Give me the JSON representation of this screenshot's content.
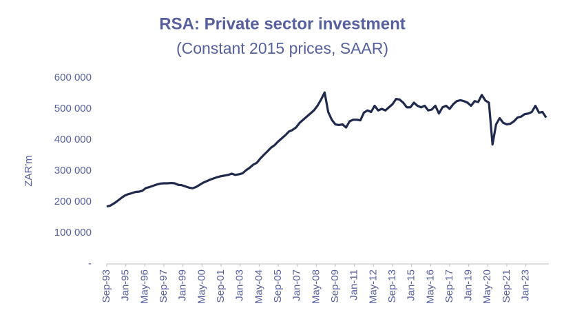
{
  "chart_data": {
    "type": "line",
    "title": "RSA: Private sector investment",
    "subtitle": "(Constant 2015 prices, SAAR)",
    "y_label": "ZAR'm",
    "x": [
      "Sep-93",
      "Dec-93",
      "Mar-94",
      "Jun-94",
      "Sep-94",
      "Dec-94",
      "Mar-95",
      "Jun-95",
      "Sep-95",
      "Dec-95",
      "Mar-96",
      "Jun-96",
      "Sep-96",
      "Dec-96",
      "Mar-97",
      "Jun-97",
      "Sep-97",
      "Dec-97",
      "Mar-98",
      "Jun-98",
      "Sep-98",
      "Dec-98",
      "Mar-99",
      "Jun-99",
      "Sep-99",
      "Dec-99",
      "Mar-00",
      "Jun-00",
      "Sep-00",
      "Dec-00",
      "Mar-01",
      "Jun-01",
      "Sep-01",
      "Dec-01",
      "Mar-02",
      "Jun-02",
      "Sep-02",
      "Dec-02",
      "Mar-03",
      "Jun-03",
      "Sep-03",
      "Dec-03",
      "Mar-04",
      "Jun-04",
      "Sep-04",
      "Dec-04",
      "Mar-05",
      "Jun-05",
      "Sep-05",
      "Dec-05",
      "Mar-06",
      "Jun-06",
      "Sep-06",
      "Dec-06",
      "Mar-07",
      "Jun-07",
      "Sep-07",
      "Dec-07",
      "Mar-08",
      "Jun-08",
      "Sep-08",
      "Dec-08",
      "Mar-09",
      "Jun-09",
      "Sep-09",
      "Dec-09",
      "Mar-10",
      "Jun-10",
      "Sep-10",
      "Dec-10",
      "Mar-11",
      "Jun-11",
      "Sep-11",
      "Dec-11",
      "Mar-12",
      "Jun-12",
      "Sep-12",
      "Dec-12",
      "Mar-13",
      "Jun-13",
      "Sep-13",
      "Dec-13",
      "Mar-14",
      "Jun-14",
      "Sep-14",
      "Dec-14",
      "Mar-15",
      "Jun-15",
      "Sep-15",
      "Dec-15",
      "Mar-16",
      "Jun-16",
      "Sep-16",
      "Dec-16",
      "Mar-17",
      "Jun-17",
      "Sep-17",
      "Dec-17",
      "Mar-18",
      "Jun-18",
      "Sep-18",
      "Dec-18",
      "Mar-19",
      "Jun-19",
      "Sep-19",
      "Dec-19",
      "Mar-20",
      "Jun-20",
      "Sep-20",
      "Dec-20",
      "Mar-21",
      "Jun-21",
      "Sep-21",
      "Dec-21",
      "Mar-22",
      "Jun-22",
      "Sep-22",
      "Dec-22",
      "Mar-23",
      "Jun-23",
      "Sep-23",
      "Dec-23",
      "Mar-24",
      "Jun-24"
    ],
    "series": [
      {
        "name": "Private sector investment",
        "color": "#1f2a4d",
        "values": [
          185000,
          188000,
          195000,
          203000,
          212000,
          220000,
          225000,
          228000,
          232000,
          233000,
          236000,
          245000,
          248000,
          252000,
          256000,
          259000,
          260000,
          260000,
          261000,
          260000,
          255000,
          254000,
          250000,
          246000,
          244000,
          248000,
          255000,
          262000,
          267000,
          272000,
          276000,
          280000,
          283000,
          285000,
          287000,
          291000,
          287000,
          289000,
          292000,
          302000,
          310000,
          320000,
          326000,
          340000,
          352000,
          363000,
          375000,
          383000,
          395000,
          405000,
          415000,
          427000,
          432000,
          440000,
          455000,
          465000,
          475000,
          485000,
          495000,
          510000,
          530000,
          553000,
          490000,
          465000,
          450000,
          448000,
          450000,
          440000,
          460000,
          465000,
          465000,
          463000,
          488000,
          495000,
          490000,
          510000,
          495000,
          500000,
          495000,
          505000,
          515000,
          532000,
          530000,
          520000,
          505000,
          505000,
          520000,
          510000,
          505000,
          510000,
          495000,
          498000,
          510000,
          485000,
          505000,
          510000,
          500000,
          515000,
          525000,
          528000,
          525000,
          520000,
          510000,
          525000,
          522000,
          545000,
          527000,
          520000,
          385000,
          450000,
          470000,
          455000,
          450000,
          452000,
          460000,
          472000,
          475000,
          483000,
          485000,
          490000,
          510000,
          488000,
          490000,
          472000
        ]
      }
    ],
    "xlim": [
      "Sep-93",
      "Jun-24"
    ],
    "xticks": [
      "Sep-93",
      "Jan-95",
      "May-96",
      "Sep-97",
      "Jan-99",
      "May-00",
      "Sep-01",
      "Jan-03",
      "May-04",
      "Sep-05",
      "Jan-07",
      "May-08",
      "Sep-09",
      "Jan-11",
      "May-12",
      "Sep-13",
      "Jan-15",
      "May-16",
      "Sep-17",
      "Jan-19",
      "May-20",
      "Sep-21",
      "Jan-23"
    ],
    "ylim": [
      0,
      600000
    ],
    "yticks": [
      {
        "value": 0,
        "label": "-"
      },
      {
        "value": 100000,
        "label": "100 000"
      },
      {
        "value": 200000,
        "label": "200 000"
      },
      {
        "value": 300000,
        "label": "300 000"
      },
      {
        "value": 400000,
        "label": "400 000"
      },
      {
        "value": 500000,
        "label": "500 000"
      },
      {
        "value": 600000,
        "label": "600 000"
      }
    ],
    "grid": false
  }
}
